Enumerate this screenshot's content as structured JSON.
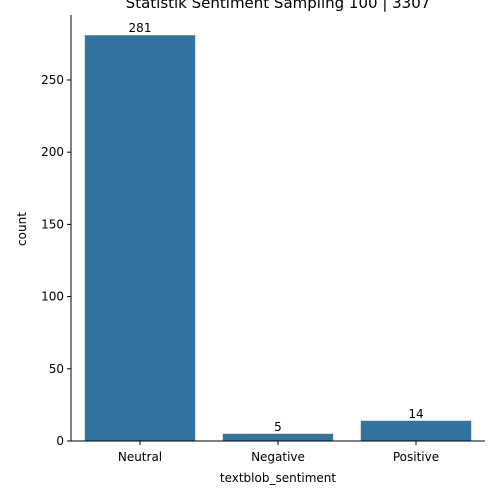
{
  "chart_data": {
    "type": "bar",
    "title": "Statistik Sentiment Sampling 100 | 3307",
    "xlabel": "textblob_sentiment",
    "ylabel": "count",
    "categories": [
      "Neutral",
      "Negative",
      "Positive"
    ],
    "values": [
      281,
      5,
      14
    ],
    "data_labels": [
      "281",
      "5",
      "14"
    ],
    "yticks": [
      0,
      50,
      100,
      150,
      200,
      250
    ],
    "ytick_labels": [
      "0",
      "50",
      "100",
      "150",
      "200",
      "250"
    ],
    "ylim": [
      0,
      295
    ],
    "bar_color": "#3274a1",
    "grid": false,
    "legend": "none"
  }
}
